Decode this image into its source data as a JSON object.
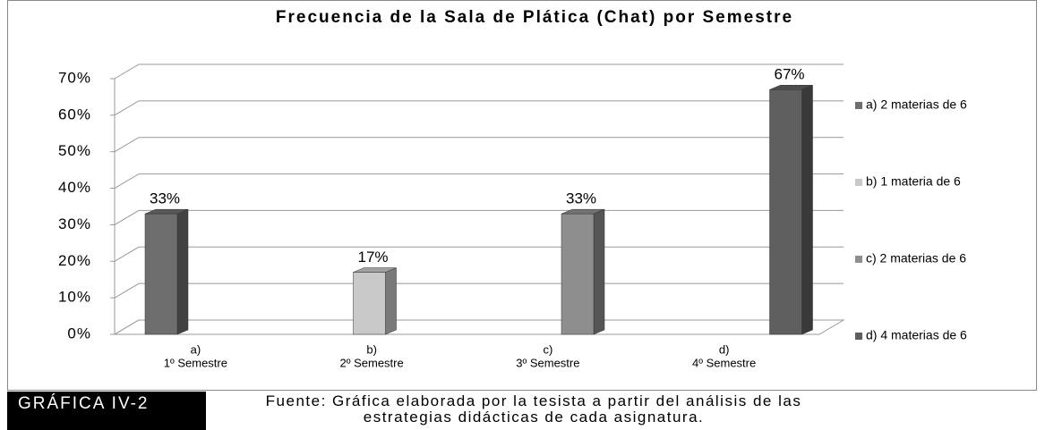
{
  "chart_data": {
    "type": "bar3d",
    "title": "Frecuencia de la Sala de Plática (Chat) por Semestre",
    "categories": [
      [
        "a)",
        "1º Semestre"
      ],
      [
        "b)",
        "2º Semestre"
      ],
      [
        "c)",
        "3º Semestre"
      ],
      [
        "d)",
        "4º Semestre"
      ]
    ],
    "series": [
      {
        "name": "a) 2 materias de 6",
        "color": "#6e6e6e",
        "values": [
          33,
          null,
          null,
          null
        ],
        "value_labels": [
          "33%",
          null,
          null,
          null
        ]
      },
      {
        "name": "b) 1 materia de 6",
        "color": "#c9c9c9",
        "values": [
          null,
          17,
          null,
          null
        ],
        "value_labels": [
          null,
          "17%",
          null,
          null
        ]
      },
      {
        "name": "c) 2 materias de 6",
        "color": "#8e8e8e",
        "values": [
          null,
          null,
          33,
          null
        ],
        "value_labels": [
          null,
          null,
          "33%",
          null
        ]
      },
      {
        "name": "d) 4 materias de 6",
        "color": "#5f5f5f",
        "values": [
          null,
          null,
          null,
          67
        ],
        "value_labels": [
          null,
          null,
          null,
          "67%"
        ]
      }
    ],
    "ylim": [
      0,
      70
    ],
    "yticks": [
      {
        "value": 0,
        "label": "0%"
      },
      {
        "value": 10,
        "label": "10%"
      },
      {
        "value": 20,
        "label": "20%"
      },
      {
        "value": 30,
        "label": "30%"
      },
      {
        "value": 40,
        "label": "40%"
      },
      {
        "value": 50,
        "label": "50%"
      },
      {
        "value": 60,
        "label": "60%"
      },
      {
        "value": 70,
        "label": "70%"
      }
    ],
    "grid": true,
    "legend": "right"
  },
  "caption": {
    "label": "GRÁFICA IV-2",
    "text": "Fuente: Gráfica elaborada por la tesista a partir del análisis de las estrategias didácticas de cada asignatura."
  }
}
